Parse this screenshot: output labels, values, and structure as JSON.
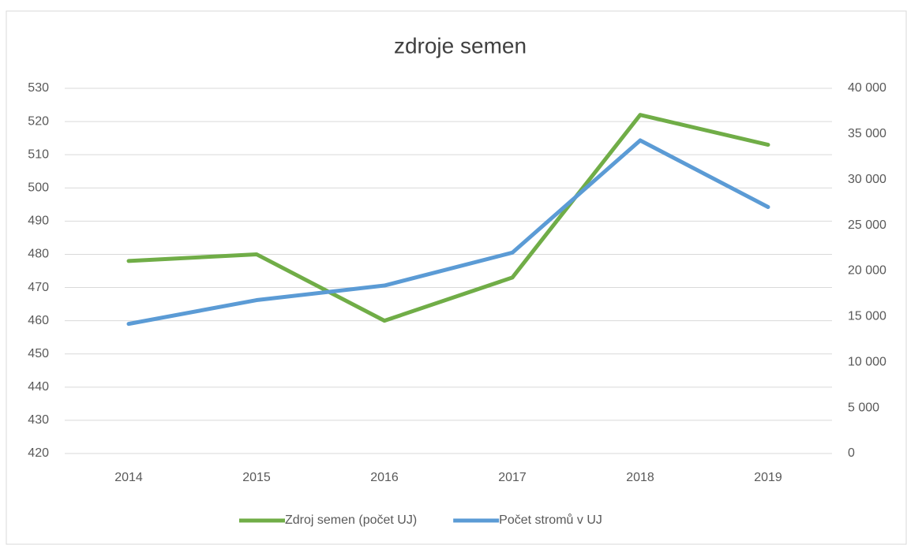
{
  "chart_data": {
    "type": "line",
    "title": "zdroje semen",
    "categories": [
      "2014",
      "2015",
      "2016",
      "2017",
      "2018",
      "2019"
    ],
    "series": [
      {
        "name": "Zdroj semen (počet UJ)",
        "color": "#70ad47",
        "values": [
          478,
          480,
          460,
          473,
          522,
          513
        ]
      },
      {
        "name": "Počet stromů v UJ",
        "color": "#5b9bd5",
        "axis": "y2",
        "values": [
          14200,
          16800,
          18400,
          22000,
          34300,
          27000
        ]
      }
    ],
    "ylim": [
      420,
      530
    ],
    "yticks": [
      420,
      430,
      440,
      450,
      460,
      470,
      480,
      490,
      500,
      510,
      520,
      530
    ],
    "y2lim": [
      0,
      40000
    ],
    "y2ticks": [
      0,
      {
        "value": 5000,
        "label": "5 000"
      },
      {
        "value": 10000,
        "label": "10 000"
      },
      {
        "value": 15000,
        "label": "15 000"
      },
      {
        "value": 20000,
        "label": "20 000"
      },
      {
        "value": 25000,
        "label": "25 000"
      },
      {
        "value": 30000,
        "label": "30 000"
      },
      {
        "value": 35000,
        "label": "35 000"
      },
      {
        "value": 40000,
        "label": "40 000"
      }
    ],
    "grid": true,
    "legend": "bottom"
  }
}
